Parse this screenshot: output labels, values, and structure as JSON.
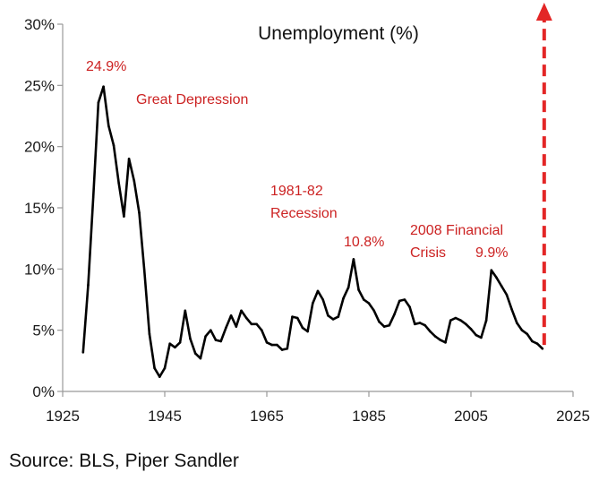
{
  "chart_data": {
    "type": "line",
    "title": "Unemployment (%)",
    "xlabel": "",
    "ylabel": "",
    "xlim": [
      1925,
      2025
    ],
    "ylim": [
      0,
      30
    ],
    "x_ticks": [
      1925,
      1945,
      1965,
      1985,
      2005,
      2025
    ],
    "x_tick_labels": [
      "1925",
      "1945",
      "1965",
      "1985",
      "2005",
      "2025"
    ],
    "y_ticks": [
      0,
      5,
      10,
      15,
      20,
      25,
      30
    ],
    "y_tick_labels": [
      "0%",
      "5%",
      "10%",
      "15%",
      "20%",
      "25%",
      "30%"
    ],
    "grid": false,
    "series": [
      {
        "name": "Unemployment (%)",
        "color": "#000000",
        "x": [
          1929,
          1930,
          1931,
          1932,
          1933,
          1934,
          1935,
          1936,
          1937,
          1938,
          1939,
          1940,
          1941,
          1942,
          1943,
          1944,
          1945,
          1946,
          1947,
          1948,
          1949,
          1950,
          1951,
          1952,
          1953,
          1954,
          1955,
          1956,
          1957,
          1958,
          1959,
          1960,
          1961,
          1962,
          1963,
          1964,
          1965,
          1966,
          1967,
          1968,
          1969,
          1970,
          1971,
          1972,
          1973,
          1974,
          1975,
          1976,
          1977,
          1978,
          1979,
          1980,
          1981,
          1982,
          1983,
          1984,
          1985,
          1986,
          1987,
          1988,
          1989,
          1990,
          1991,
          1992,
          1993,
          1994,
          1995,
          1996,
          1997,
          1998,
          1999,
          2000,
          2001,
          2002,
          2003,
          2004,
          2005,
          2006,
          2007,
          2008,
          2009,
          2010,
          2011,
          2012,
          2013,
          2014,
          2015,
          2016,
          2017,
          2018,
          2019
        ],
        "values": [
          3.2,
          8.7,
          15.9,
          23.6,
          24.9,
          21.7,
          20.1,
          17.0,
          14.3,
          19.0,
          17.2,
          14.6,
          9.9,
          4.7,
          1.9,
          1.2,
          1.9,
          3.9,
          3.6,
          4.0,
          6.6,
          4.3,
          3.1,
          2.7,
          4.5,
          5.0,
          4.2,
          4.1,
          5.2,
          6.2,
          5.3,
          6.6,
          6.0,
          5.5,
          5.5,
          5.0,
          4.0,
          3.8,
          3.8,
          3.4,
          3.5,
          6.1,
          6.0,
          5.2,
          4.9,
          7.2,
          8.2,
          7.5,
          6.2,
          5.9,
          6.1,
          7.6,
          8.5,
          10.8,
          8.3,
          7.5,
          7.2,
          6.6,
          5.7,
          5.3,
          5.4,
          6.3,
          7.4,
          7.5,
          6.9,
          5.5,
          5.6,
          5.4,
          4.9,
          4.5,
          4.2,
          4.0,
          5.8,
          6.0,
          5.8,
          5.5,
          5.1,
          4.6,
          4.4,
          5.8,
          9.9,
          9.3,
          8.6,
          7.9,
          6.7,
          5.6,
          5.0,
          4.7,
          4.1,
          3.9,
          3.5
        ]
      }
    ],
    "annotations": [
      {
        "text": "24.9%",
        "color": "#cc2222"
      },
      {
        "text": "Great Depression",
        "color": "#cc2222"
      },
      {
        "text": "1981-82",
        "color": "#cc2222"
      },
      {
        "text": "Recession",
        "color": "#cc2222"
      },
      {
        "text": "10.8%",
        "color": "#cc2222"
      },
      {
        "text": "2008 Financial",
        "color": "#cc2222"
      },
      {
        "text": "Crisis",
        "color": "#cc2222"
      },
      {
        "text": "9.9%",
        "color": "#cc2222"
      }
    ],
    "arrow": {
      "direction": "up",
      "style": "dashed",
      "color": "#e32626",
      "from_year": 2019,
      "from_value": 3.5
    }
  },
  "source": "Source: BLS, Piper Sandler"
}
